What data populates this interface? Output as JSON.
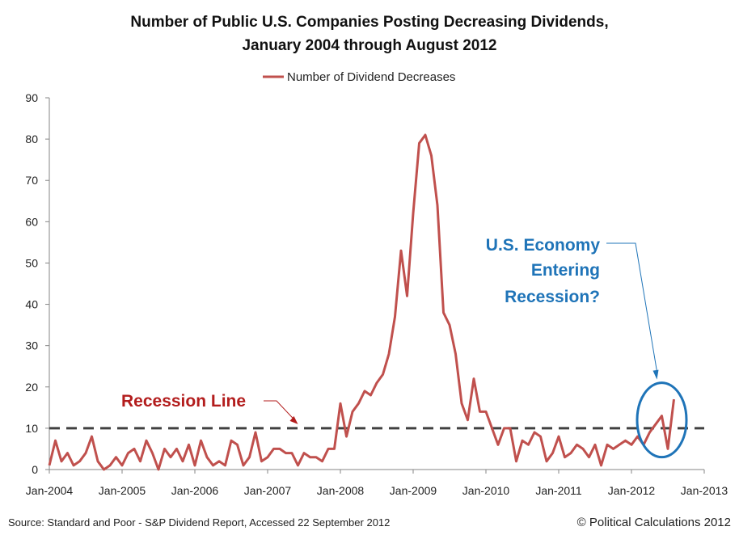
{
  "chart_data": {
    "type": "line",
    "title_lines": [
      "Number of Public U.S. Companies Posting Decreasing Dividends,",
      "January 2004 through August 2012"
    ],
    "legend": {
      "label": "Number of Dividend Decreases",
      "placement": "top-center"
    },
    "xlabel": "",
    "ylabel": "",
    "ylim": [
      0,
      90
    ],
    "yticks": [
      "0",
      "10",
      "20",
      "30",
      "40",
      "50",
      "60",
      "70",
      "80",
      "90"
    ],
    "xlim": [
      "2004-01",
      "2013-01"
    ],
    "xticks": [
      "Jan-2004",
      "Jan-2005",
      "Jan-2006",
      "Jan-2007",
      "Jan-2008",
      "Jan-2009",
      "Jan-2010",
      "Jan-2011",
      "Jan-2012",
      "Jan-2013"
    ],
    "grid": false,
    "series": [
      {
        "name": "Number of Dividend Decreases",
        "color": "#c0504d",
        "x": [
          "2004-01",
          "2004-02",
          "2004-03",
          "2004-04",
          "2004-05",
          "2004-06",
          "2004-07",
          "2004-08",
          "2004-09",
          "2004-10",
          "2004-11",
          "2004-12",
          "2005-01",
          "2005-02",
          "2005-03",
          "2005-04",
          "2005-05",
          "2005-06",
          "2005-07",
          "2005-08",
          "2005-09",
          "2005-10",
          "2005-11",
          "2005-12",
          "2006-01",
          "2006-02",
          "2006-03",
          "2006-04",
          "2006-05",
          "2006-06",
          "2006-07",
          "2006-08",
          "2006-09",
          "2006-10",
          "2006-11",
          "2006-12",
          "2007-01",
          "2007-02",
          "2007-03",
          "2007-04",
          "2007-05",
          "2007-06",
          "2007-07",
          "2007-08",
          "2007-09",
          "2007-10",
          "2007-11",
          "2007-12",
          "2008-01",
          "2008-02",
          "2008-03",
          "2008-04",
          "2008-05",
          "2008-06",
          "2008-07",
          "2008-08",
          "2008-09",
          "2008-10",
          "2008-11",
          "2008-12",
          "2009-01",
          "2009-02",
          "2009-03",
          "2009-04",
          "2009-05",
          "2009-06",
          "2009-07",
          "2009-08",
          "2009-09",
          "2009-10",
          "2009-11",
          "2009-12",
          "2010-01",
          "2010-02",
          "2010-03",
          "2010-04",
          "2010-05",
          "2010-06",
          "2010-07",
          "2010-08",
          "2010-09",
          "2010-10",
          "2010-11",
          "2010-12",
          "2011-01",
          "2011-02",
          "2011-03",
          "2011-04",
          "2011-05",
          "2011-06",
          "2011-07",
          "2011-08",
          "2011-09",
          "2011-10",
          "2011-11",
          "2011-12",
          "2012-01",
          "2012-02",
          "2012-03",
          "2012-04",
          "2012-05",
          "2012-06",
          "2012-07",
          "2012-08"
        ],
        "values": [
          1,
          7,
          2,
          4,
          1,
          2,
          4,
          8,
          2,
          0,
          1,
          3,
          1,
          4,
          5,
          2,
          7,
          4,
          0,
          5,
          3,
          5,
          2,
          6,
          1,
          7,
          3,
          1,
          2,
          1,
          7,
          6,
          1,
          3,
          9,
          2,
          3,
          5,
          5,
          4,
          4,
          1,
          4,
          3,
          3,
          2,
          5,
          5,
          16,
          8,
          14,
          16,
          19,
          18,
          21,
          23,
          28,
          37,
          53,
          42,
          62,
          79,
          81,
          76,
          64,
          38,
          35,
          28,
          16,
          12,
          22,
          14,
          14,
          10,
          6,
          10,
          10,
          2,
          7,
          6,
          9,
          8,
          2,
          4,
          8,
          3,
          4,
          6,
          5,
          3,
          6,
          1,
          6,
          5,
          6,
          7,
          6,
          8,
          6,
          9,
          11,
          13,
          5,
          17
        ]
      }
    ],
    "reference_line": {
      "value": 10,
      "style": "dashed",
      "color": "#404040"
    },
    "annotations": [
      {
        "text": "Recession Line",
        "color": "#b31d1d",
        "points_to": {
          "x": "2007-06",
          "y": 10
        }
      },
      {
        "text_lines": [
          "U.S. Economy",
          "Entering",
          "Recession?"
        ],
        "color": "#1f74b8",
        "circle_around": {
          "x_from": "2012-03",
          "x_to": "2012-09",
          "y_from": 3,
          "y_to": 21
        }
      }
    ]
  },
  "footer": {
    "source": "Source: Standard and Poor - S&P Dividend Report, Accessed 22 September  2012",
    "copyright": "© Political Calculations 2012"
  }
}
